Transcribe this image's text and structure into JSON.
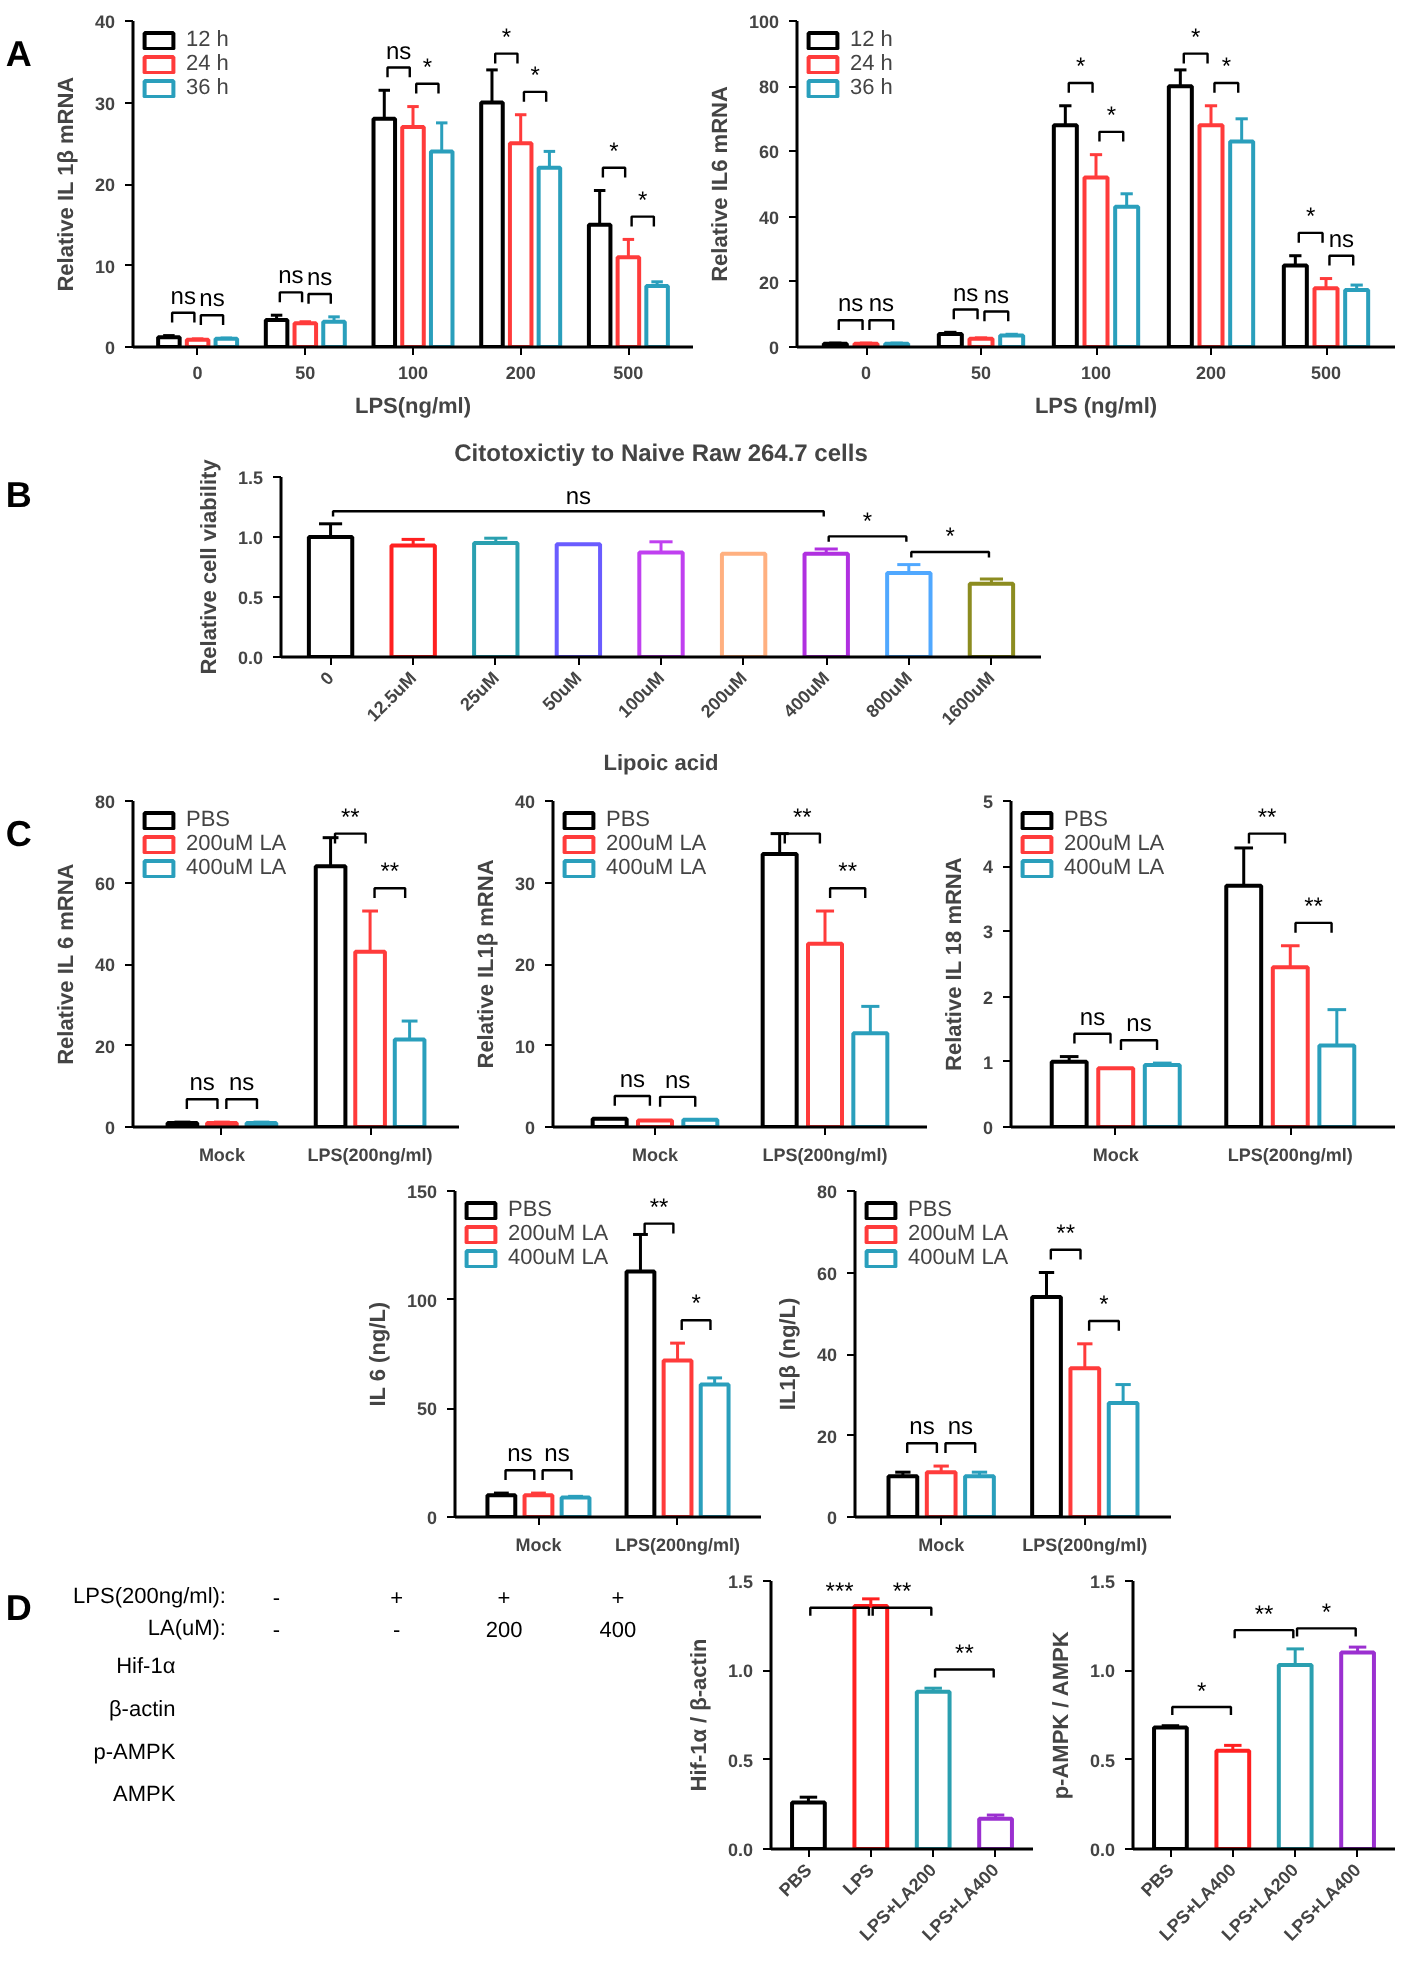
{
  "chart_data": [
    {
      "type": "other",
      "annotations": [
        "A"
      ]
    },
    {
      "type": "bar",
      "categories": [
        "0",
        "50",
        "100",
        "200",
        "500"
      ],
      "xlabel": "LPS(ng/ml)",
      "ylabel": "Relative IL 1β mRNA",
      "ylim": [
        0,
        40
      ],
      "yticks": [
        0,
        10,
        20,
        30,
        40
      ],
      "legend": "top left",
      "series": [
        {
          "name": "12 h",
          "color": "#000000",
          "values": [
            1.2,
            3.3,
            28,
            30,
            15
          ],
          "errors": [
            0.2,
            0.6,
            3.5,
            4,
            4.2
          ]
        },
        {
          "name": "24 h",
          "color": "#ff3b3b",
          "values": [
            0.9,
            2.9,
            27,
            25,
            11
          ],
          "errors": [
            0.1,
            0.2,
            2.5,
            3.5,
            2.2
          ]
        },
        {
          "name": "36 h",
          "color": "#2a9fbc",
          "values": [
            1.0,
            3.1,
            24,
            22,
            7.5
          ],
          "errors": [
            0.1,
            0.6,
            3.5,
            2,
            0.5
          ]
        }
      ],
      "annotations": [
        "ns",
        "ns",
        "ns",
        "ns",
        "ns",
        "*",
        "*",
        "*",
        "*",
        "*"
      ]
    },
    {
      "type": "bar",
      "categories": [
        "0",
        "50",
        "100",
        "200",
        "500"
      ],
      "xlabel": "LPS (ng/ml)",
      "ylabel": "Relative IL6 mRNA",
      "ylim": [
        0,
        100
      ],
      "yticks": [
        0,
        20,
        40,
        60,
        80,
        100
      ],
      "legend": "top left",
      "series": [
        {
          "name": "12 h",
          "color": "#000000",
          "values": [
            1,
            4,
            68,
            80,
            25
          ],
          "errors": [
            0.2,
            0.5,
            6,
            5,
            3
          ]
        },
        {
          "name": "24 h",
          "color": "#ff3b3b",
          "values": [
            1,
            2.5,
            52,
            68,
            18
          ],
          "errors": [
            0.2,
            0.3,
            7,
            6,
            3
          ]
        },
        {
          "name": "36 h",
          "color": "#2a9fbc",
          "values": [
            1,
            3.5,
            43,
            63,
            17.5
          ],
          "errors": [
            0.2,
            0.4,
            4,
            7,
            1.5
          ]
        }
      ],
      "annotations": [
        "ns",
        "ns",
        "ns",
        "ns",
        "*",
        "*",
        "*",
        "*",
        "*",
        "ns"
      ]
    },
    {
      "type": "other",
      "annotations": [
        "B"
      ]
    },
    {
      "type": "bar",
      "title": "Citotoxictiy to Naive Raw 264.7 cells",
      "categories": [
        "0",
        "12.5uM",
        "25uM",
        "50uM",
        "100uM",
        "200uM",
        "400uM",
        "800uM",
        "1600uM"
      ],
      "xlabel": "Lipoic acid",
      "ylabel": "Relative cell viability",
      "ylim": [
        0,
        1.5
      ],
      "yticks": [
        {
          "value": 0,
          "label": "0.0"
        },
        {
          "value": 0.5,
          "label": "0.5"
        },
        {
          "value": 1,
          "label": "1.0"
        },
        {
          "value": 1.5,
          "label": "1.5"
        }
      ],
      "values": [
        1.0,
        0.93,
        0.95,
        0.94,
        0.87,
        0.86,
        0.86,
        0.7,
        0.61
      ],
      "errors": [
        0.11,
        0.05,
        0.04,
        null,
        0.09,
        null,
        0.04,
        0.07,
        0.04
      ],
      "colors": [
        "#000000",
        "#ff2020",
        "#2aa0b0",
        "#6a5cff",
        "#c040f0",
        "#ffb080",
        "#b030e0",
        "#50a8ff",
        "#8c8c20"
      ],
      "annotations": [
        "ns",
        "*",
        "*"
      ]
    },
    {
      "type": "other",
      "annotations": [
        "C"
      ]
    },
    {
      "type": "bar",
      "categories": [
        "Mock",
        "LPS(200ng/ml)"
      ],
      "ylabel": "Relative IL 6 mRNA",
      "ylim": [
        0,
        80
      ],
      "yticks": [
        0,
        20,
        40,
        60,
        80
      ],
      "legend": "top left",
      "series": [
        {
          "name": "PBS",
          "color": "#000000",
          "values": [
            1,
            64
          ],
          "errors": [
            0.2,
            7
          ]
        },
        {
          "name": "200uM LA",
          "color": "#ff3b3b",
          "values": [
            1,
            43
          ],
          "errors": [
            0.2,
            10
          ]
        },
        {
          "name": "400uM LA",
          "color": "#2a9fbc",
          "values": [
            1,
            21.5
          ],
          "errors": [
            0.2,
            4.5
          ]
        }
      ],
      "annotations": [
        "ns",
        "ns",
        "**",
        "**"
      ]
    },
    {
      "type": "bar",
      "categories": [
        "Mock",
        "LPS(200ng/ml)"
      ],
      "ylabel": "Relative IL1β mRNA",
      "ylim": [
        0,
        40
      ],
      "yticks": [
        0,
        10,
        20,
        30,
        40
      ],
      "legend": "top left",
      "series": [
        {
          "name": "PBS",
          "color": "#000000",
          "values": [
            1,
            33.5
          ],
          "errors": [
            null,
            2.5
          ]
        },
        {
          "name": "200uM LA",
          "color": "#ff3b3b",
          "values": [
            0.8,
            22.5
          ],
          "errors": [
            null,
            4
          ]
        },
        {
          "name": "400uM LA",
          "color": "#2a9fbc",
          "values": [
            0.9,
            11.5
          ],
          "errors": [
            null,
            3.3
          ]
        }
      ],
      "annotations": [
        "ns",
        "ns",
        "**",
        "**"
      ]
    },
    {
      "type": "bar",
      "categories": [
        "Mock",
        "LPS(200ng/ml)"
      ],
      "ylabel": "Relative IL 18 mRNA",
      "ylim": [
        0,
        5
      ],
      "yticks": [
        0,
        1,
        2,
        3,
        4,
        5
      ],
      "legend": "top left",
      "series": [
        {
          "name": "PBS",
          "color": "#000000",
          "values": [
            1.0,
            3.7
          ],
          "errors": [
            0.08,
            0.58
          ]
        },
        {
          "name": "200uM LA",
          "color": "#ff3b3b",
          "values": [
            0.9,
            2.45
          ],
          "errors": [
            null,
            0.33
          ]
        },
        {
          "name": "400uM LA",
          "color": "#2a9fbc",
          "values": [
            0.95,
            1.25
          ],
          "errors": [
            0.03,
            0.55
          ]
        }
      ],
      "annotations": [
        "ns",
        "ns",
        "**",
        "**"
      ]
    },
    {
      "type": "bar",
      "categories": [
        "Mock",
        "LPS(200ng/ml)"
      ],
      "ylabel": "IL 6 (ng/L)",
      "ylim": [
        0,
        150
      ],
      "yticks": [
        0,
        50,
        100,
        150
      ],
      "legend": "top left",
      "series": [
        {
          "name": "PBS",
          "color": "#000000",
          "values": [
            10,
            113
          ],
          "errors": [
            1,
            17
          ]
        },
        {
          "name": "200uM LA",
          "color": "#ff3b3b",
          "values": [
            10,
            72
          ],
          "errors": [
            1,
            8
          ]
        },
        {
          "name": "400uM LA",
          "color": "#2a9fbc",
          "values": [
            9,
            61
          ],
          "errors": [
            0.5,
            3
          ]
        }
      ],
      "annotations": [
        "ns",
        "ns",
        "**",
        "*"
      ]
    },
    {
      "type": "bar",
      "categories": [
        "Mock",
        "LPS(200ng/ml)"
      ],
      "ylabel": "IL1β (ng/L)",
      "ylim": [
        0,
        80
      ],
      "yticks": [
        0,
        20,
        40,
        60,
        80
      ],
      "legend": "top left",
      "series": [
        {
          "name": "PBS",
          "color": "#000000",
          "values": [
            10,
            54
          ],
          "errors": [
            1,
            6
          ]
        },
        {
          "name": "200uM LA",
          "color": "#ff3b3b",
          "values": [
            11,
            36.5
          ],
          "errors": [
            1.5,
            6
          ]
        },
        {
          "name": "400uM LA",
          "color": "#2a9fbc",
          "values": [
            10,
            28
          ],
          "errors": [
            1,
            4.5
          ]
        }
      ],
      "annotations": [
        "ns",
        "ns",
        "**",
        "*"
      ]
    },
    {
      "type": "other",
      "annotations": [
        "D"
      ]
    },
    {
      "type": "other",
      "annotations": [
        "LPS(200ng/ml):",
        "-",
        "+",
        "+",
        "+",
        "LA(uM):",
        "-",
        "-",
        "200",
        "400",
        "Hif-1α",
        "β-actin",
        "p-AMPK",
        "AMPK"
      ]
    },
    {
      "type": "bar",
      "categories": [
        "PBS",
        "LPS",
        "LPS+LA200",
        "LPS+LA400"
      ],
      "ylabel": "Hif-1α / β-actin",
      "ylim": [
        0,
        1.5
      ],
      "yticks": [
        {
          "value": 0,
          "label": "0.0"
        },
        {
          "value": 0.5,
          "label": "0.5"
        },
        {
          "value": 1,
          "label": "1.0"
        },
        {
          "value": 1.5,
          "label": "1.5"
        }
      ],
      "values": [
        0.26,
        1.36,
        0.88,
        0.17
      ],
      "errors": [
        0.03,
        0.04,
        0.02,
        0.02
      ],
      "colors": [
        "#000000",
        "#ff2020",
        "#2a9fb0",
        "#9b30d0"
      ],
      "annotations": [
        "***",
        "**",
        "**"
      ]
    },
    {
      "type": "bar",
      "categories": [
        "PBS",
        "LPS+LA400",
        "LPS+LA200",
        "LPS+LA400"
      ],
      "ylabel": "p-AMPK / AMPK",
      "ylim": [
        0,
        1.5
      ],
      "yticks": [
        {
          "value": 0,
          "label": "0.0"
        },
        {
          "value": 0.5,
          "label": "0.5"
        },
        {
          "value": 1,
          "label": "1.0"
        },
        {
          "value": 1.5,
          "label": "1.5"
        }
      ],
      "values": [
        0.68,
        0.55,
        1.03,
        1.1
      ],
      "errors": [
        0.01,
        0.03,
        0.09,
        0.03
      ],
      "colors": [
        "#000000",
        "#ff2020",
        "#2a9fb0",
        "#9b30d0"
      ],
      "annotations": [
        "*",
        "**",
        "*"
      ]
    }
  ]
}
